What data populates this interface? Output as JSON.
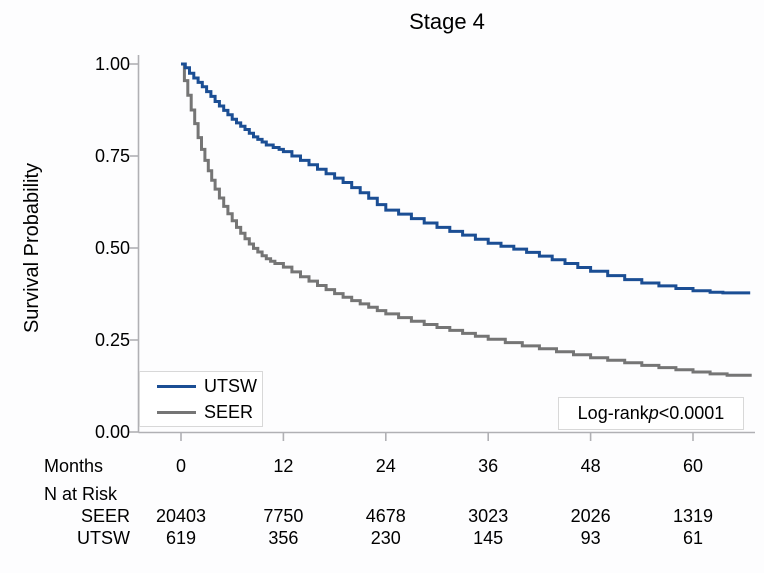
{
  "chart_data": {
    "type": "line",
    "subtype": "kaplan-meier-step",
    "title": "Stage 4",
    "xlabel": "Months",
    "ylabel": "Survival Probability",
    "xlim": [
      0,
      66.7
    ],
    "ylim": [
      0,
      1
    ],
    "grid": false,
    "axis_color": "#b0b0b4",
    "text_color": "#000000",
    "x_ticks": [
      0,
      12,
      24,
      36,
      48,
      60
    ],
    "y_ticks": [
      {
        "value": 1.0,
        "label": "1.00"
      },
      {
        "value": 0.75,
        "label": "0.75"
      },
      {
        "value": 0.5,
        "label": "0.50"
      },
      {
        "value": 0.25,
        "label": "0.25"
      },
      {
        "value": 0.0,
        "label": "0.00"
      }
    ],
    "legend": {
      "position": "bottom-left",
      "entries": [
        {
          "label": "UTSW",
          "color": "#1b4e94"
        },
        {
          "label": "SEER",
          "color": "#757575"
        }
      ]
    },
    "annotation": {
      "prefix": "Log-rank",
      "italic": "p",
      "suffix": "<0.0001"
    },
    "series": [
      {
        "name": "SEER",
        "color": "#757575",
        "points": [
          [
            0,
            1.0
          ],
          [
            0.4,
            0.955
          ],
          [
            0.8,
            0.915
          ],
          [
            1.2,
            0.875
          ],
          [
            1.6,
            0.838
          ],
          [
            2,
            0.8
          ],
          [
            2.4,
            0.768
          ],
          [
            2.8,
            0.738
          ],
          [
            3.2,
            0.71
          ],
          [
            3.6,
            0.684
          ],
          [
            4,
            0.66
          ],
          [
            4.5,
            0.636
          ],
          [
            5,
            0.613
          ],
          [
            5.5,
            0.593
          ],
          [
            6,
            0.574
          ],
          [
            6.5,
            0.556
          ],
          [
            7,
            0.54
          ],
          [
            7.5,
            0.525
          ],
          [
            8,
            0.511
          ],
          [
            8.5,
            0.499
          ],
          [
            9,
            0.489
          ],
          [
            9.5,
            0.479
          ],
          [
            10,
            0.471
          ],
          [
            10.5,
            0.464
          ],
          [
            11,
            0.458
          ],
          [
            12,
            0.448
          ],
          [
            13,
            0.435
          ],
          [
            14,
            0.422
          ],
          [
            15,
            0.41
          ],
          [
            16,
            0.398
          ],
          [
            17,
            0.387
          ],
          [
            18,
            0.376
          ],
          [
            19,
            0.366
          ],
          [
            20,
            0.357
          ],
          [
            21,
            0.348
          ],
          [
            22,
            0.339
          ],
          [
            23,
            0.33
          ],
          [
            24,
            0.321
          ],
          [
            25.5,
            0.311
          ],
          [
            27,
            0.301
          ],
          [
            28.5,
            0.292
          ],
          [
            30,
            0.284
          ],
          [
            31.5,
            0.276
          ],
          [
            33,
            0.268
          ],
          [
            34.5,
            0.26
          ],
          [
            36,
            0.252
          ],
          [
            38,
            0.243
          ],
          [
            40,
            0.234
          ],
          [
            42,
            0.226
          ],
          [
            44,
            0.218
          ],
          [
            46,
            0.21
          ],
          [
            48,
            0.202
          ],
          [
            50,
            0.195
          ],
          [
            52,
            0.188
          ],
          [
            54,
            0.181
          ],
          [
            56,
            0.175
          ],
          [
            58,
            0.169
          ],
          [
            60,
            0.163
          ],
          [
            62,
            0.158
          ],
          [
            64,
            0.154
          ],
          [
            66.7,
            0.15
          ]
        ]
      },
      {
        "name": "UTSW",
        "color": "#1b4e94",
        "points": [
          [
            0,
            1.0
          ],
          [
            0.5,
            0.99
          ],
          [
            1,
            0.975
          ],
          [
            1.5,
            0.962
          ],
          [
            2,
            0.95
          ],
          [
            2.5,
            0.938
          ],
          [
            3,
            0.925
          ],
          [
            3.5,
            0.912
          ],
          [
            4,
            0.898
          ],
          [
            4.5,
            0.886
          ],
          [
            5,
            0.874
          ],
          [
            5.5,
            0.862
          ],
          [
            6,
            0.85
          ],
          [
            6.5,
            0.84
          ],
          [
            7,
            0.831
          ],
          [
            7.5,
            0.822
          ],
          [
            8,
            0.812
          ],
          [
            8.5,
            0.802
          ],
          [
            9,
            0.795
          ],
          [
            9.5,
            0.788
          ],
          [
            10,
            0.78
          ],
          [
            10.8,
            0.773
          ],
          [
            11.5,
            0.768
          ],
          [
            12,
            0.762
          ],
          [
            13,
            0.75
          ],
          [
            14,
            0.738
          ],
          [
            15,
            0.726
          ],
          [
            16,
            0.714
          ],
          [
            17,
            0.702
          ],
          [
            18,
            0.69
          ],
          [
            19,
            0.678
          ],
          [
            20,
            0.664
          ],
          [
            21,
            0.65
          ],
          [
            22,
            0.635
          ],
          [
            23,
            0.618
          ],
          [
            24,
            0.603
          ],
          [
            25.5,
            0.592
          ],
          [
            27,
            0.58
          ],
          [
            28.5,
            0.568
          ],
          [
            30,
            0.556
          ],
          [
            31.5,
            0.545
          ],
          [
            33,
            0.535
          ],
          [
            34.5,
            0.524
          ],
          [
            36,
            0.513
          ],
          [
            37.5,
            0.505
          ],
          [
            39,
            0.497
          ],
          [
            40.5,
            0.488
          ],
          [
            42,
            0.478
          ],
          [
            43.5,
            0.468
          ],
          [
            45,
            0.458
          ],
          [
            46.5,
            0.447
          ],
          [
            48,
            0.437
          ],
          [
            50,
            0.425
          ],
          [
            52,
            0.414
          ],
          [
            54,
            0.405
          ],
          [
            56,
            0.397
          ],
          [
            58,
            0.39
          ],
          [
            60,
            0.384
          ],
          [
            62,
            0.38
          ],
          [
            63.5,
            0.378
          ],
          [
            66.7,
            0.378
          ]
        ]
      }
    ],
    "risk_table": {
      "row_header_label": "Months",
      "section_label": "N at Risk",
      "times": [
        0,
        12,
        24,
        36,
        48,
        60
      ],
      "rows": [
        {
          "name": "SEER",
          "counts": [
            "20403",
            "7750",
            "4678",
            "3023",
            "2026",
            "1319"
          ]
        },
        {
          "name": "UTSW",
          "counts": [
            "619",
            "356",
            "230",
            "145",
            "93",
            "61"
          ]
        }
      ]
    }
  }
}
